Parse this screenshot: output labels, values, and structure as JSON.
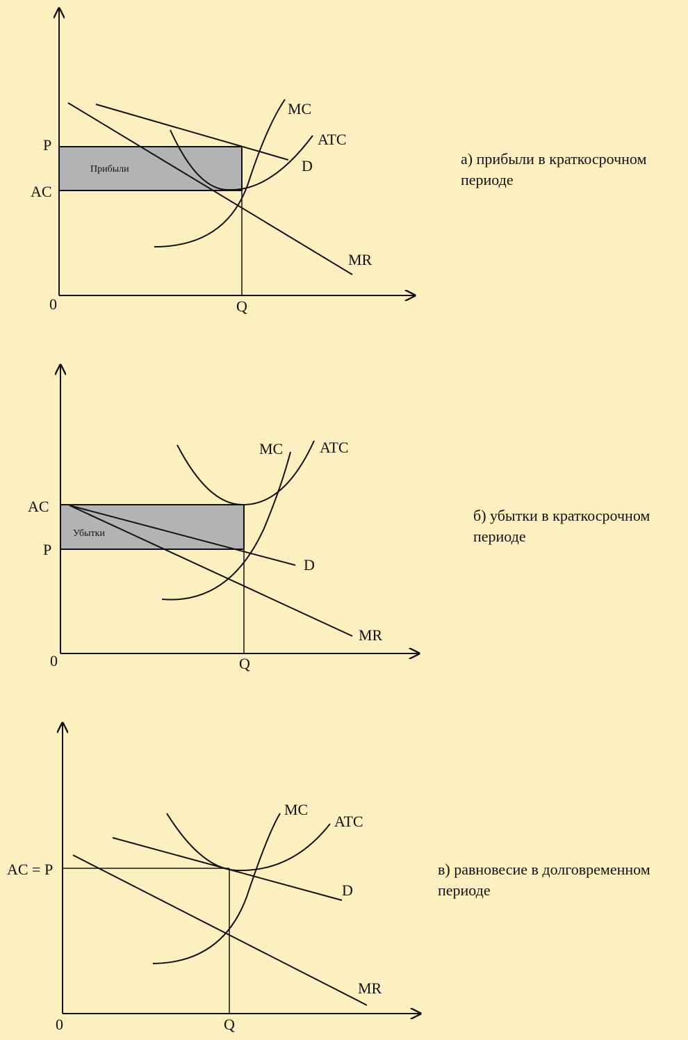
{
  "panels": [
    {
      "labels": {
        "p": "P",
        "ac": "AC",
        "area": "Прибыли",
        "mc": "MC",
        "atc": "ATC",
        "d": "D",
        "mr": "MR",
        "origin": "0",
        "q": "Q"
      },
      "caption": [
        "а) прибыли в краткосрочном",
        "периоде"
      ]
    },
    {
      "labels": {
        "ac": "AC",
        "p": "P",
        "area": "Убытки",
        "mc": "MC",
        "atc": "ATC",
        "d": "D",
        "mr": "MR",
        "origin": "0",
        "q": "Q"
      },
      "caption": [
        "б) убытки в краткосрочном",
        "периоде"
      ]
    },
    {
      "labels": {
        "acp": "AC = P",
        "mc": "MC",
        "atc": "ATC",
        "d": "D",
        "mr": "MR",
        "origin": "0",
        "q": "Q"
      },
      "caption": [
        "в) равновесие в долговременном",
        "периоде"
      ]
    }
  ]
}
